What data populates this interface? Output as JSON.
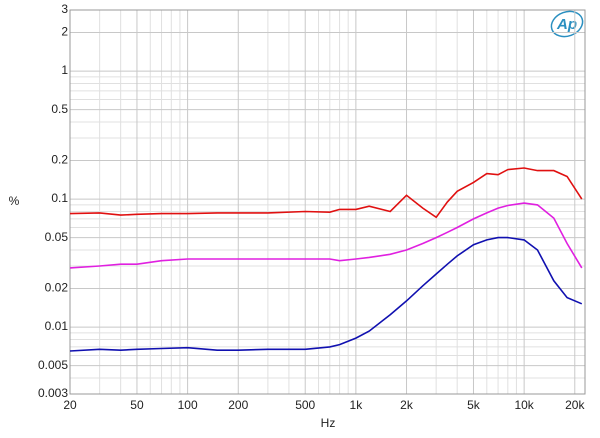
{
  "chart_data": {
    "type": "line",
    "x_label": "Hz",
    "y_label": "%",
    "logo": "Ap",
    "x": [
      20,
      30,
      40,
      50,
      70,
      100,
      150,
      200,
      300,
      500,
      700,
      800,
      1000,
      1200,
      1600,
      2000,
      2500,
      3000,
      3500,
      4000,
      5000,
      6000,
      7000,
      8000,
      10000,
      12000,
      15000,
      18000,
      22000
    ],
    "series": [
      {
        "color": "#e01010",
        "values": [
          0.077,
          0.078,
          0.075,
          0.076,
          0.077,
          0.077,
          0.078,
          0.078,
          0.078,
          0.08,
          0.079,
          0.083,
          0.083,
          0.088,
          0.08,
          0.107,
          0.085,
          0.072,
          0.095,
          0.115,
          0.135,
          0.158,
          0.155,
          0.17,
          0.175,
          0.167,
          0.167,
          0.15,
          0.1
        ]
      },
      {
        "color": "#e020e0",
        "values": [
          0.029,
          0.03,
          0.031,
          0.031,
          0.033,
          0.034,
          0.034,
          0.034,
          0.034,
          0.034,
          0.034,
          0.033,
          0.034,
          0.035,
          0.037,
          0.04,
          0.045,
          0.05,
          0.055,
          0.06,
          0.07,
          0.078,
          0.085,
          0.089,
          0.093,
          0.09,
          0.071,
          0.045,
          0.029
        ]
      },
      {
        "color": "#1010b0",
        "values": [
          0.0065,
          0.0067,
          0.0066,
          0.0067,
          0.0068,
          0.0069,
          0.0066,
          0.0066,
          0.0067,
          0.0067,
          0.007,
          0.0073,
          0.0082,
          0.0093,
          0.0125,
          0.016,
          0.021,
          0.026,
          0.031,
          0.036,
          0.044,
          0.048,
          0.05,
          0.05,
          0.048,
          0.04,
          0.023,
          0.017,
          0.0152
        ]
      }
    ],
    "xlog": true,
    "ylog": true,
    "xlim": [
      20,
      23000
    ],
    "ylim": [
      0.003,
      3
    ],
    "xticks": [
      20,
      50,
      100,
      200,
      500,
      {
        "value": 1000,
        "label": "1k"
      },
      {
        "value": 2000,
        "label": "2k"
      },
      {
        "value": 5000,
        "label": "5k"
      },
      {
        "value": 10000,
        "label": "10k"
      },
      {
        "value": 20000,
        "label": "20k"
      }
    ],
    "yticks": [
      0.003,
      0.005,
      0.01,
      0.02,
      0.05,
      0.1,
      0.2,
      0.5,
      1,
      2,
      3
    ],
    "x_minor_grid": [
      30,
      40,
      60,
      70,
      80,
      90,
      300,
      400,
      600,
      700,
      800,
      900,
      3000,
      4000,
      6000,
      7000,
      8000,
      9000
    ],
    "y_minor_grid": [
      0.004,
      0.006,
      0.007,
      0.008,
      0.009,
      0.03,
      0.04,
      0.06,
      0.07,
      0.08,
      0.09,
      0.3,
      0.4,
      0.6,
      0.7,
      0.8,
      0.9
    ],
    "grid": true
  }
}
